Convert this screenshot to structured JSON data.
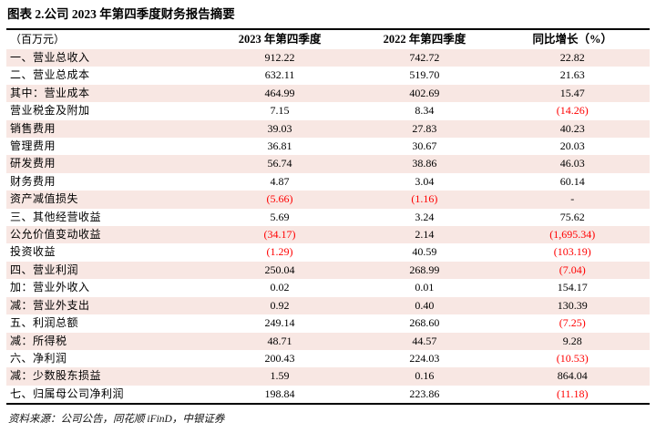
{
  "title": "图表 2.公司 2023 年第四季度财务报告摘要",
  "table": {
    "unit_header": "（百万元）",
    "col_headers": [
      "2023 年第四季度",
      "2022 年第四季度",
      "同比增长（%）"
    ],
    "rows": [
      {
        "label": "一、营业总收入",
        "q4_2023": "912.22",
        "q4_2022": "742.72",
        "yoy": "22.82"
      },
      {
        "label": "二、营业总成本",
        "q4_2023": "632.11",
        "q4_2022": "519.70",
        "yoy": "21.63"
      },
      {
        "label": "其中：营业成本",
        "q4_2023": "464.99",
        "q4_2022": "402.69",
        "yoy": "15.47"
      },
      {
        "label": "营业税金及附加",
        "q4_2023": "7.15",
        "q4_2022": "8.34",
        "yoy": "(14.26)"
      },
      {
        "label": "销售费用",
        "q4_2023": "39.03",
        "q4_2022": "27.83",
        "yoy": "40.23"
      },
      {
        "label": "管理费用",
        "q4_2023": "36.81",
        "q4_2022": "30.67",
        "yoy": "20.03"
      },
      {
        "label": "研发费用",
        "q4_2023": "56.74",
        "q4_2022": "38.86",
        "yoy": "46.03"
      },
      {
        "label": "财务费用",
        "q4_2023": "4.87",
        "q4_2022": "3.04",
        "yoy": "60.14"
      },
      {
        "label": "资产减值损失",
        "q4_2023": "(5.66)",
        "q4_2022": "(1.16)",
        "yoy": "-"
      },
      {
        "label": "三、其他经营收益",
        "q4_2023": "5.69",
        "q4_2022": "3.24",
        "yoy": "75.62"
      },
      {
        "label": "公允价值变动收益",
        "q4_2023": "(34.17)",
        "q4_2022": "2.14",
        "yoy": "(1,695.34)"
      },
      {
        "label": "投资收益",
        "q4_2023": "(1.29)",
        "q4_2022": "40.59",
        "yoy": "(103.19)"
      },
      {
        "label": "四、营业利润",
        "q4_2023": "250.04",
        "q4_2022": "268.99",
        "yoy": "(7.04)"
      },
      {
        "label": "加：营业外收入",
        "q4_2023": "0.02",
        "q4_2022": "0.01",
        "yoy": "154.17"
      },
      {
        "label": "减：营业外支出",
        "q4_2023": "0.92",
        "q4_2022": "0.40",
        "yoy": "130.39"
      },
      {
        "label": "五、利润总额",
        "q4_2023": "249.14",
        "q4_2022": "268.60",
        "yoy": "(7.25)"
      },
      {
        "label": "减：所得税",
        "q4_2023": "48.71",
        "q4_2022": "44.57",
        "yoy": "9.28"
      },
      {
        "label": "六、净利润",
        "q4_2023": "200.43",
        "q4_2022": "224.03",
        "yoy": "(10.53)"
      },
      {
        "label": "减：少数股东损益",
        "q4_2023": "1.59",
        "q4_2022": "0.16",
        "yoy": "864.04"
      },
      {
        "label": "七、归属母公司净利润",
        "q4_2023": "198.84",
        "q4_2022": "223.86",
        "yoy": "(11.18)"
      }
    ]
  },
  "footer": {
    "source": "资料来源：公司公告，同花顺 iFinD，中银证券"
  },
  "colors": {
    "row_stripe": "#f8e7e3",
    "negative_text": "#ff0000",
    "rule": "#000000"
  }
}
